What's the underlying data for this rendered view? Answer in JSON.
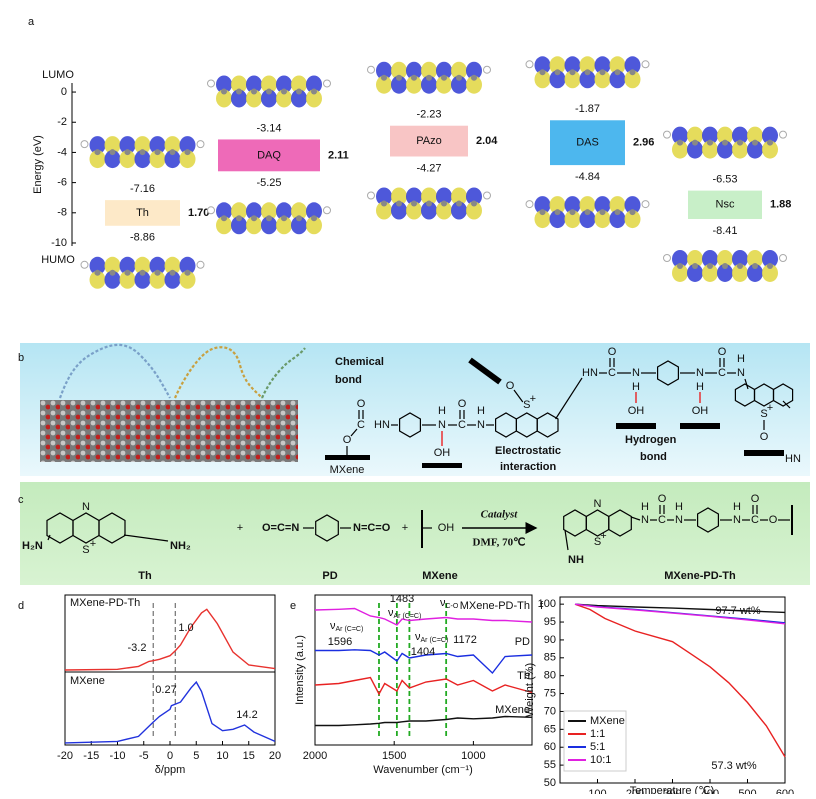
{
  "panel_labels": [
    "a",
    "b",
    "c",
    "d",
    "e",
    "f"
  ],
  "atoms": {
    "O": "O",
    "N": "N",
    "H": "H",
    "C": "C",
    "OH": "OH",
    "HN": "HN",
    "NH": "NH",
    "S": "S",
    "plus": "+"
  },
  "schematic": {
    "chemical_bond": [
      "Chemical",
      "bond"
    ],
    "electrostatic": [
      "Electrostatic",
      "interaction"
    ],
    "hydrogen_bond": [
      "Hydrogen",
      "bond"
    ],
    "mxene": "MXene"
  },
  "reaction": {
    "amine_left": "H₂N",
    "amine_right": "NH₂",
    "plus": "+",
    "isocyanate_left": "O=C=N",
    "isocyanate_right": "N=C=O",
    "catalyst": "Catalyst",
    "conditions": "DMF, 70℃",
    "names": [
      "Th",
      "PD",
      "MXene",
      "MXene-PD-Th"
    ]
  },
  "chart_data": [
    {
      "type": "level",
      "ylabel": "Energy (eV)",
      "ylim": [
        -10.2,
        0.6
      ],
      "yticks": [
        0,
        -2,
        -4,
        -6,
        -8,
        -10
      ],
      "top_label": "LUMO",
      "bottom_label": "HUMO",
      "molecules": [
        {
          "name": "Th",
          "lumo": -7.16,
          "homo": -8.86,
          "gap": {
            "value": 1.7,
            "label": "1.70"
          },
          "color": "#fde9c8"
        },
        {
          "name": "DAQ",
          "lumo": -3.14,
          "homo": -5.25,
          "gap": 2.11,
          "color": "#ee6ab8"
        },
        {
          "name": "PAzo",
          "lumo": -2.23,
          "homo": -4.27,
          "gap": 2.04,
          "color": "#f8c5c5"
        },
        {
          "name": "DAS",
          "lumo": -1.87,
          "homo": -4.84,
          "gap": 2.96,
          "color": "#4db7ee"
        },
        {
          "name": "Nsc",
          "lumo": -6.53,
          "homo": -8.41,
          "gap": 1.88,
          "color": "#c8efc8"
        }
      ]
    },
    {
      "type": "line",
      "xlabel": "δ/ppm",
      "xlim": [
        -20,
        20
      ],
      "xticks": [
        -20,
        -15,
        -10,
        -5,
        0,
        5,
        10,
        15,
        20
      ],
      "ylim": [
        0,
        2.1
      ],
      "series": [
        {
          "name": "MXene-PD-Th",
          "color": "#e8322e",
          "x": [
            -20,
            -10,
            -6,
            -4,
            -3.2,
            -2,
            0,
            1,
            2,
            4,
            6,
            7,
            9,
            12,
            15,
            20
          ],
          "values": [
            1.05,
            1.06,
            1.1,
            1.17,
            1.18,
            1.2,
            1.25,
            1.32,
            1.4,
            1.65,
            1.85,
            1.9,
            1.7,
            1.3,
            1.12,
            1.07
          ]
        },
        {
          "name": "MXene",
          "color": "#2233dd",
          "x": [
            -20,
            -10,
            -6,
            -3.2,
            -2,
            0,
            0.27,
            2,
            4,
            5,
            6,
            8,
            10,
            12,
            14.2,
            16,
            20
          ],
          "values": [
            0.03,
            0.05,
            0.12,
            0.32,
            0.4,
            0.5,
            0.55,
            0.6,
            0.8,
            0.88,
            0.75,
            0.3,
            0.2,
            0.22,
            0.28,
            0.18,
            0.05
          ]
        }
      ],
      "dashed": [
        -3.2,
        1.0
      ],
      "dashed_color": "#555555",
      "annotations": [
        "-3.2",
        "1.0",
        "0.27",
        "14.2"
      ]
    },
    {
      "type": "line",
      "xlabel": "Wavenumber (cm⁻¹)",
      "ylabel": "Intensity (a.u.)",
      "xlim": [
        2000,
        630
      ],
      "xticks": [
        2000,
        1500,
        1000
      ],
      "ylim": [
        0,
        10
      ],
      "series": [
        {
          "name": "MXene-PD-Th",
          "color": "#e020e0",
          "x": [
            2000,
            1850,
            1750,
            1650,
            1596,
            1560,
            1483,
            1450,
            1404,
            1300,
            1172,
            1100,
            1000,
            880,
            800,
            630
          ],
          "values": [
            9.0,
            9.05,
            9.1,
            8.6,
            8.5,
            8.4,
            8.0,
            8.4,
            8.3,
            8.4,
            8.5,
            8.4,
            8.4,
            8.3,
            8.3,
            8.2
          ]
        },
        {
          "name": "PD",
          "color": "#1a2ee0",
          "x": [
            2000,
            1850,
            1750,
            1650,
            1596,
            1560,
            1483,
            1450,
            1404,
            1300,
            1172,
            1100,
            1000,
            880,
            800,
            630
          ],
          "values": [
            6.3,
            6.3,
            6.35,
            6.3,
            6.0,
            6.2,
            5.6,
            6.1,
            5.8,
            6.0,
            6.1,
            5.9,
            6.0,
            4.8,
            5.9,
            6.0
          ]
        },
        {
          "name": "Th",
          "color": "#e82222",
          "x": [
            2000,
            1850,
            1750,
            1650,
            1596,
            1560,
            1483,
            1450,
            1404,
            1300,
            1172,
            1100,
            1000,
            880,
            800,
            630
          ],
          "values": [
            4.0,
            4.1,
            4.3,
            4.5,
            3.4,
            4.1,
            3.6,
            4.3,
            3.8,
            4.2,
            4.4,
            4.0,
            4.3,
            3.6,
            4.0,
            3.5
          ]
        },
        {
          "name": "MXene",
          "color": "#111111",
          "x": [
            2000,
            1850,
            1750,
            1650,
            1596,
            1560,
            1483,
            1450,
            1404,
            1300,
            1172,
            1100,
            1000,
            880,
            800,
            630
          ],
          "values": [
            1.3,
            1.3,
            1.35,
            1.4,
            1.45,
            1.5,
            1.5,
            1.55,
            1.6,
            1.6,
            1.7,
            1.8,
            1.75,
            1.8,
            1.9,
            1.85
          ]
        }
      ],
      "dashed": [
        1596,
        1483,
        1404,
        1172
      ],
      "dashed_color": "#22aa22",
      "annotations": [
        "1596",
        "1483",
        "1404",
        "1172"
      ],
      "nu_labels": [
        {
          "symbol": "ν",
          "sub": "Ar (C=C)"
        },
        {
          "symbol": "ν",
          "sub": "Ar (C=C)"
        },
        {
          "symbol": "ν",
          "sub": "Ar (C=C)"
        },
        {
          "symbol": "ν",
          "sub": "C-O"
        }
      ]
    },
    {
      "type": "line",
      "xlabel": "Temperature (℃)",
      "ylabel": "Weight (%)",
      "xlim": [
        0,
        600
      ],
      "xticks": [
        100,
        200,
        300,
        400,
        500,
        600
      ],
      "ylim": [
        50,
        102
      ],
      "yticks": [
        50,
        55,
        60,
        65,
        70,
        75,
        80,
        85,
        90,
        95,
        100
      ],
      "legend": "lower left",
      "series": [
        {
          "name": "MXene",
          "color": "#111111",
          "x": [
            40,
            100,
            200,
            300,
            400,
            500,
            600
          ],
          "values": [
            100,
            99.6,
            99.2,
            98.9,
            98.5,
            98.1,
            97.7
          ]
        },
        {
          "name": "1:1",
          "color": "#e82222",
          "x": [
            40,
            80,
            120,
            200,
            300,
            350,
            400,
            450,
            500,
            550,
            600
          ],
          "values": [
            100,
            98.5,
            96,
            92.5,
            89.5,
            86,
            82.5,
            78,
            72.5,
            66,
            57.3
          ]
        },
        {
          "name": "5:1",
          "color": "#1a2ee0",
          "x": [
            40,
            100,
            200,
            300,
            400,
            500,
            600
          ],
          "values": [
            100,
            99.3,
            98.5,
            97.6,
            96.7,
            95.8,
            94.8
          ]
        },
        {
          "name": "10:1",
          "color": "#e020e0",
          "x": [
            40,
            100,
            200,
            300,
            400,
            500,
            600
          ],
          "values": [
            100,
            99.2,
            98.4,
            97.5,
            96.6,
            95.6,
            94.5
          ]
        }
      ],
      "annotations": [
        "97.7 wt%",
        "57.3 wt%"
      ]
    }
  ]
}
